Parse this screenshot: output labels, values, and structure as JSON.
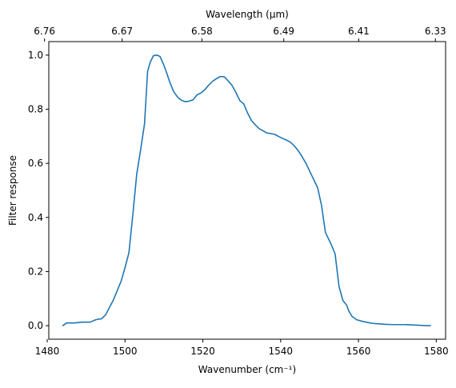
{
  "colors": {
    "line": "#1f77b4",
    "axes": "#000000",
    "background": "#ffffff"
  },
  "chart_data": {
    "type": "line",
    "title": "",
    "xlabel": "Wavenumber (cm⁻¹)",
    "ylabel": "Filter response",
    "top_xlabel": "Wavelength (μm)",
    "xlim": [
      1480.4,
      1582.4
    ],
    "ylim": [
      -0.05,
      1.05
    ],
    "grid": false,
    "legend": "none",
    "xticks": [
      1480,
      1500,
      1520,
      1540,
      1560,
      1580
    ],
    "xtick_labels": [
      "1480",
      "1500",
      "1520",
      "1540",
      "1560",
      "1580"
    ],
    "yticks": [
      0.0,
      0.2,
      0.4,
      0.6,
      0.8,
      1.0
    ],
    "ytick_labels": [
      "0.0",
      "0.2",
      "0.4",
      "0.6",
      "0.8",
      "1.0"
    ],
    "top_xticks": [
      1479.3,
      1499.25,
      1519.76,
      1540.8,
      1560.06,
      1579.78
    ],
    "top_xtick_labels": [
      "6.76",
      "6.67",
      "6.58",
      "6.49",
      "6.41",
      "6.33"
    ],
    "series": [
      {
        "x": [
          1484.0,
          1485.0,
          1487.0,
          1489.0,
          1491.0,
          1492.5,
          1494.0,
          1495.0,
          1497.0,
          1499.0,
          1500.0,
          1501.0,
          1502.0,
          1503.0,
          1504.0,
          1505.0,
          1505.8,
          1506.5,
          1507.3,
          1508.2,
          1509.0,
          1510.0,
          1510.8,
          1511.5,
          1512.5,
          1513.5,
          1514.5,
          1515.5,
          1516.5,
          1517.5,
          1518.5,
          1519.5,
          1520.5,
          1521.5,
          1522.5,
          1523.5,
          1524.5,
          1525.5,
          1526.5,
          1527.5,
          1528.5,
          1529.5,
          1530.5,
          1531.5,
          1532.5,
          1533.5,
          1534.5,
          1535.5,
          1536.5,
          1537.5,
          1538.5,
          1539.5,
          1540.5,
          1541.5,
          1542.5,
          1543.5,
          1544.5,
          1545.5,
          1546.5,
          1547.5,
          1548.5,
          1549.5,
          1550.5,
          1551.5,
          1553.0,
          1554.0,
          1555.0,
          1556.0,
          1557.0,
          1557.5,
          1558.3,
          1559.5,
          1561.0,
          1562.0,
          1563.0,
          1564.0,
          1565.0,
          1566.0,
          1567.0,
          1569.0,
          1572.0,
          1575.0,
          1577.5,
          1578.5
        ],
        "y": [
          0.0,
          0.01,
          0.01,
          0.013,
          0.013,
          0.022,
          0.026,
          0.04,
          0.095,
          0.165,
          0.215,
          0.27,
          0.41,
          0.56,
          0.65,
          0.745,
          0.94,
          0.975,
          0.998,
          1.0,
          0.995,
          0.962,
          0.93,
          0.9,
          0.865,
          0.845,
          0.833,
          0.828,
          0.83,
          0.835,
          0.853,
          0.86,
          0.872,
          0.889,
          0.903,
          0.913,
          0.921,
          0.92,
          0.905,
          0.888,
          0.862,
          0.832,
          0.82,
          0.786,
          0.758,
          0.742,
          0.728,
          0.72,
          0.712,
          0.71,
          0.707,
          0.699,
          0.692,
          0.686,
          0.678,
          0.665,
          0.647,
          0.625,
          0.6,
          0.57,
          0.54,
          0.51,
          0.445,
          0.345,
          0.3,
          0.265,
          0.145,
          0.093,
          0.075,
          0.055,
          0.035,
          0.022,
          0.016,
          0.013,
          0.01,
          0.008,
          0.007,
          0.006,
          0.005,
          0.004,
          0.004,
          0.002,
          0.0,
          0.0
        ]
      }
    ]
  }
}
